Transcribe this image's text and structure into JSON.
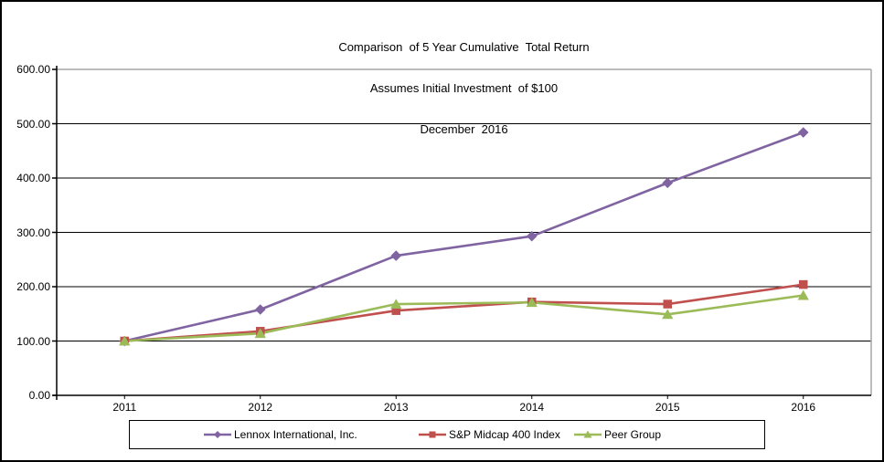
{
  "title": {
    "line1": "Comparison  of 5 Year Cumulative  Total Return",
    "line2": "Assumes Initial Investment  of $100",
    "line3": "December  2016"
  },
  "chart_data": {
    "type": "line",
    "categories": [
      "2011",
      "2012",
      "2013",
      "2014",
      "2015",
      "2016"
    ],
    "series": [
      {
        "name": "Lennox International, Inc.",
        "marker": "diamond",
        "color": "#8064A2",
        "values": [
          100,
          158,
          257,
          293,
          391,
          484
        ]
      },
      {
        "name": "S&P Midcap 400 Index",
        "marker": "square",
        "color": "#C0504D",
        "values": [
          100,
          118,
          156,
          172,
          168,
          204
        ]
      },
      {
        "name": "Peer Group",
        "marker": "triangle",
        "color": "#9BBB59",
        "values": [
          100,
          114,
          168,
          171,
          149,
          184
        ]
      }
    ],
    "ylim": [
      0,
      600
    ],
    "ytick_step": 100,
    "ytick_labels": [
      "0.00",
      "100.00",
      "200.00",
      "300.00",
      "400.00",
      "500.00",
      "600.00"
    ],
    "grid": true,
    "legend_position": "bottom",
    "gridline_color": "#000000",
    "plot_border_color": "#A6A6A6",
    "axis_color": "#000000"
  }
}
